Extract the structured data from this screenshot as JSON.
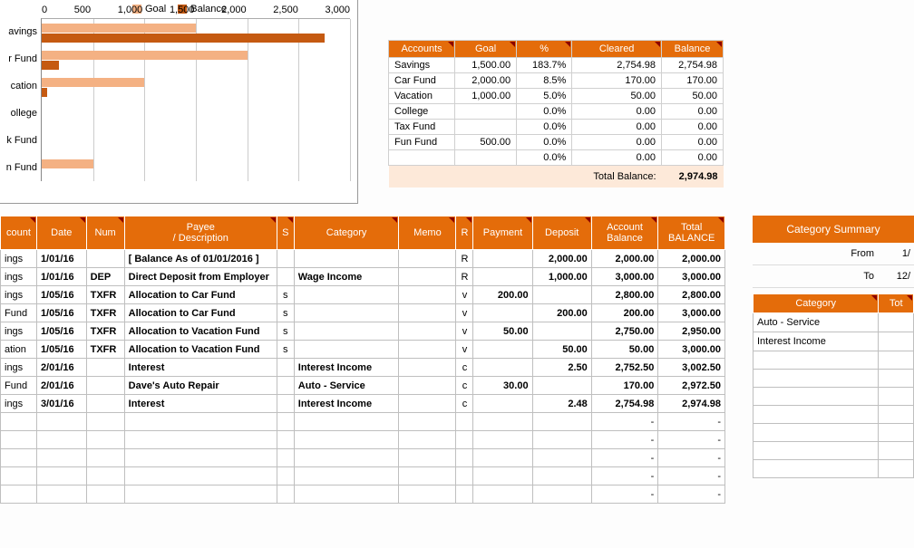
{
  "chart": {
    "legend": [
      {
        "label": "Goal",
        "color": "#f4b183"
      },
      {
        "label": "Balance",
        "color": "#c55a11"
      }
    ],
    "xmax": 3000,
    "xticks": [
      "0",
      "500",
      "1,000",
      "1,500",
      "2,000",
      "2,500",
      "3,000"
    ],
    "categories": [
      "avings",
      "r Fund",
      "cation",
      "ollege",
      "k Fund",
      "n Fund"
    ],
    "series": [
      {
        "name": "Goal",
        "color": "#f4b183",
        "values": [
          1500,
          2000,
          1000,
          0,
          0,
          500
        ]
      },
      {
        "name": "Balance",
        "color": "#c55a11",
        "values": [
          2754.98,
          170,
          50,
          0,
          0,
          0
        ]
      }
    ]
  },
  "accounts": {
    "headers": [
      "Accounts",
      "Goal",
      "%",
      "Cleared",
      "Balance"
    ],
    "rows": [
      [
        "Savings",
        "1,500.00",
        "183.7%",
        "2,754.98",
        "2,754.98"
      ],
      [
        "Car Fund",
        "2,000.00",
        "8.5%",
        "170.00",
        "170.00"
      ],
      [
        "Vacation",
        "1,000.00",
        "5.0%",
        "50.00",
        "50.00"
      ],
      [
        "College",
        "",
        "0.0%",
        "0.00",
        "0.00"
      ],
      [
        "Tax Fund",
        "",
        "0.0%",
        "0.00",
        "0.00"
      ],
      [
        "Fun Fund",
        "500.00",
        "0.0%",
        "0.00",
        "0.00"
      ],
      [
        "",
        "",
        "0.0%",
        "0.00",
        "0.00"
      ]
    ],
    "total_label": "Total Balance:",
    "total_value": "2,974.98"
  },
  "ledger": {
    "headers": [
      "count",
      "Date",
      "Num",
      "Payee / Description",
      "S",
      "Category",
      "Memo",
      "R",
      "Payment",
      "Deposit",
      "Account Balance",
      "Total BALANCE"
    ],
    "rows": [
      {
        "c": [
          "ings",
          "1/01/16",
          "",
          "[ Balance As of 01/01/2016 ]",
          "",
          "",
          "",
          "R",
          "",
          "2,000.00",
          "2,000.00",
          "2,000.00"
        ],
        "bold": true
      },
      {
        "c": [
          "ings",
          "1/01/16",
          "DEP",
          "Direct Deposit from Employer",
          "",
          "Wage Income",
          "",
          "R",
          "",
          "1,000.00",
          "3,000.00",
          "3,000.00"
        ],
        "bold": true
      },
      {
        "c": [
          "ings",
          "1/05/16",
          "TXFR",
          "Allocation to Car Fund",
          "s",
          "",
          "",
          "v",
          "200.00",
          "",
          "2,800.00",
          "2,800.00"
        ],
        "bold": true
      },
      {
        "c": [
          "Fund",
          "1/05/16",
          "TXFR",
          "Allocation to Car Fund",
          "s",
          "",
          "",
          "v",
          "",
          "200.00",
          "200.00",
          "3,000.00"
        ],
        "bold": true
      },
      {
        "c": [
          "ings",
          "1/05/16",
          "TXFR",
          "Allocation to Vacation Fund",
          "s",
          "",
          "",
          "v",
          "50.00",
          "",
          "2,750.00",
          "2,950.00"
        ],
        "bold": true
      },
      {
        "c": [
          "ation",
          "1/05/16",
          "TXFR",
          "Allocation to Vacation Fund",
          "s",
          "",
          "",
          "v",
          "",
          "50.00",
          "50.00",
          "3,000.00"
        ],
        "bold": true
      },
      {
        "c": [
          "ings",
          "2/01/16",
          "",
          "Interest",
          "",
          "Interest Income",
          "",
          "c",
          "",
          "2.50",
          "2,752.50",
          "3,002.50"
        ],
        "bold": true
      },
      {
        "c": [
          "Fund",
          "2/01/16",
          "",
          "Dave's Auto Repair",
          "",
          "Auto - Service",
          "",
          "c",
          "30.00",
          "",
          "170.00",
          "2,972.50"
        ],
        "bold": true
      },
      {
        "c": [
          "ings",
          "3/01/16",
          "",
          "Interest",
          "",
          "Interest Income",
          "",
          "c",
          "",
          "2.48",
          "2,754.98",
          "2,974.98"
        ],
        "bold": true
      },
      {
        "c": [
          "",
          "",
          "",
          "",
          "",
          "",
          "",
          "",
          "",
          "",
          "-",
          "-"
        ]
      },
      {
        "c": [
          "",
          "",
          "",
          "",
          "",
          "",
          "",
          "",
          "",
          "",
          "-",
          "-"
        ]
      },
      {
        "c": [
          "",
          "",
          "",
          "",
          "",
          "",
          "",
          "",
          "",
          "",
          "-",
          "-"
        ]
      },
      {
        "c": [
          "",
          "",
          "",
          "",
          "",
          "",
          "",
          "",
          "",
          "",
          "-",
          "-"
        ]
      },
      {
        "c": [
          "",
          "",
          "",
          "",
          "",
          "",
          "",
          "",
          "",
          "",
          "-",
          "-"
        ]
      }
    ]
  },
  "summary": {
    "title": "Category Summary",
    "from_label": "From",
    "from_value": "1/",
    "to_label": "To",
    "to_value": "12/",
    "headers": [
      "Category",
      "Tot"
    ],
    "rows": [
      [
        "Auto - Service",
        ""
      ],
      [
        "Interest Income",
        ""
      ],
      [
        "",
        ""
      ],
      [
        "",
        ""
      ],
      [
        "",
        ""
      ],
      [
        "",
        ""
      ],
      [
        "",
        ""
      ],
      [
        "",
        ""
      ],
      [
        "",
        ""
      ]
    ]
  },
  "colors": {
    "header": "#e46c0a",
    "goal": "#f4b183",
    "balance": "#c55a11",
    "total_bg": "#fde9d9"
  }
}
